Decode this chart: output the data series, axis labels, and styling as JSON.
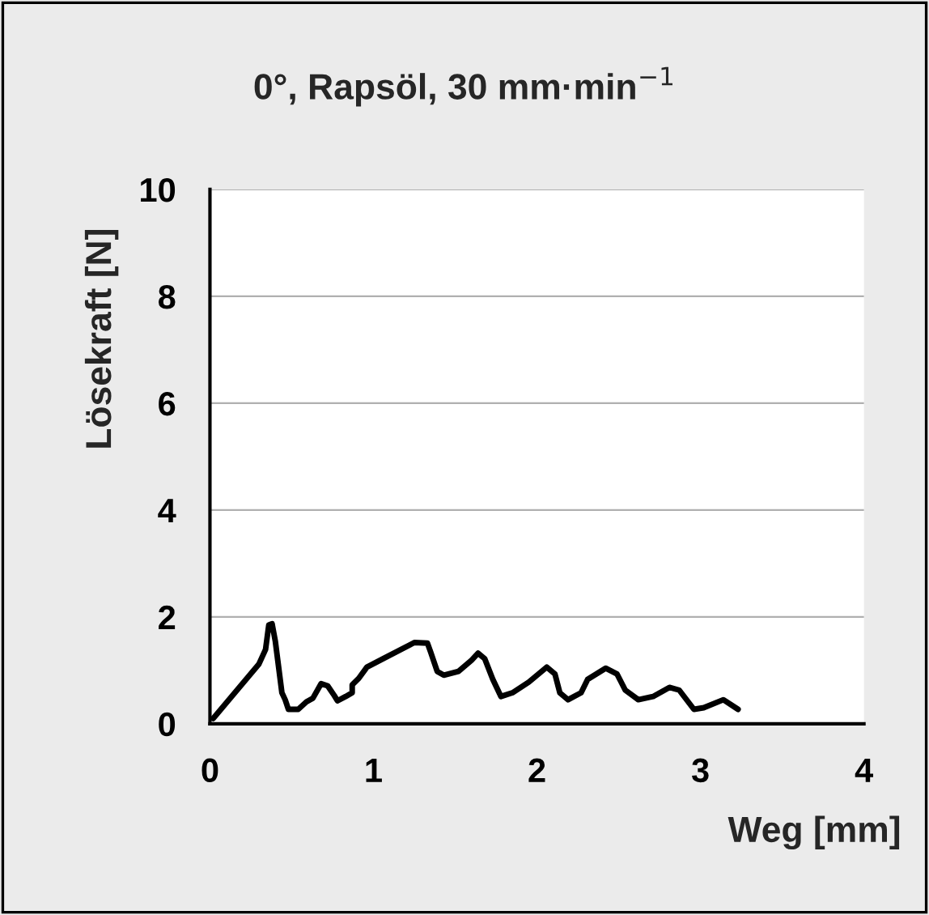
{
  "chart_data": {
    "type": "line",
    "title": "0°, Rapsöl, 30 mm·min$^{−1}$",
    "xlabel": "Weg [mm]",
    "ylabel": "Lösekraft [N]",
    "xlim": [
      0,
      4
    ],
    "xticks": [
      0,
      1,
      2,
      3,
      4
    ],
    "ylim": [
      0,
      10
    ],
    "yticks": [
      0,
      2,
      4,
      6,
      8,
      10
    ],
    "grid": "y",
    "series": [
      {
        "color": "#000000",
        "x": [
          0.02,
          0.3,
          0.34,
          0.36,
          0.38,
          0.4,
          0.44,
          0.46,
          0.48,
          0.54,
          0.59,
          0.63,
          0.68,
          0.72,
          0.76,
          0.78,
          0.83,
          0.87,
          0.87,
          0.91,
          0.96,
          1.06,
          1.25,
          1.33,
          1.35,
          1.39,
          1.43,
          1.52,
          1.6,
          1.64,
          1.68,
          1.73,
          1.78,
          1.85,
          1.95,
          2.06,
          2.11,
          2.14,
          2.19,
          2.27,
          2.31,
          2.42,
          2.49,
          2.54,
          2.62,
          2.71,
          2.81,
          2.87,
          2.96,
          3.02,
          3.14,
          3.23
        ],
        "values": [
          0.1,
          1.12,
          1.39,
          1.85,
          1.87,
          1.54,
          0.58,
          0.45,
          0.27,
          0.27,
          0.41,
          0.48,
          0.75,
          0.71,
          0.53,
          0.43,
          0.51,
          0.58,
          0.73,
          0.85,
          1.06,
          1.22,
          1.52,
          1.51,
          1.34,
          0.98,
          0.91,
          0.98,
          1.19,
          1.32,
          1.22,
          0.83,
          0.51,
          0.58,
          0.78,
          1.06,
          0.93,
          0.58,
          0.45,
          0.58,
          0.83,
          1.04,
          0.93,
          0.63,
          0.45,
          0.51,
          0.68,
          0.63,
          0.27,
          0.3,
          0.45,
          0.27
        ]
      }
    ]
  }
}
